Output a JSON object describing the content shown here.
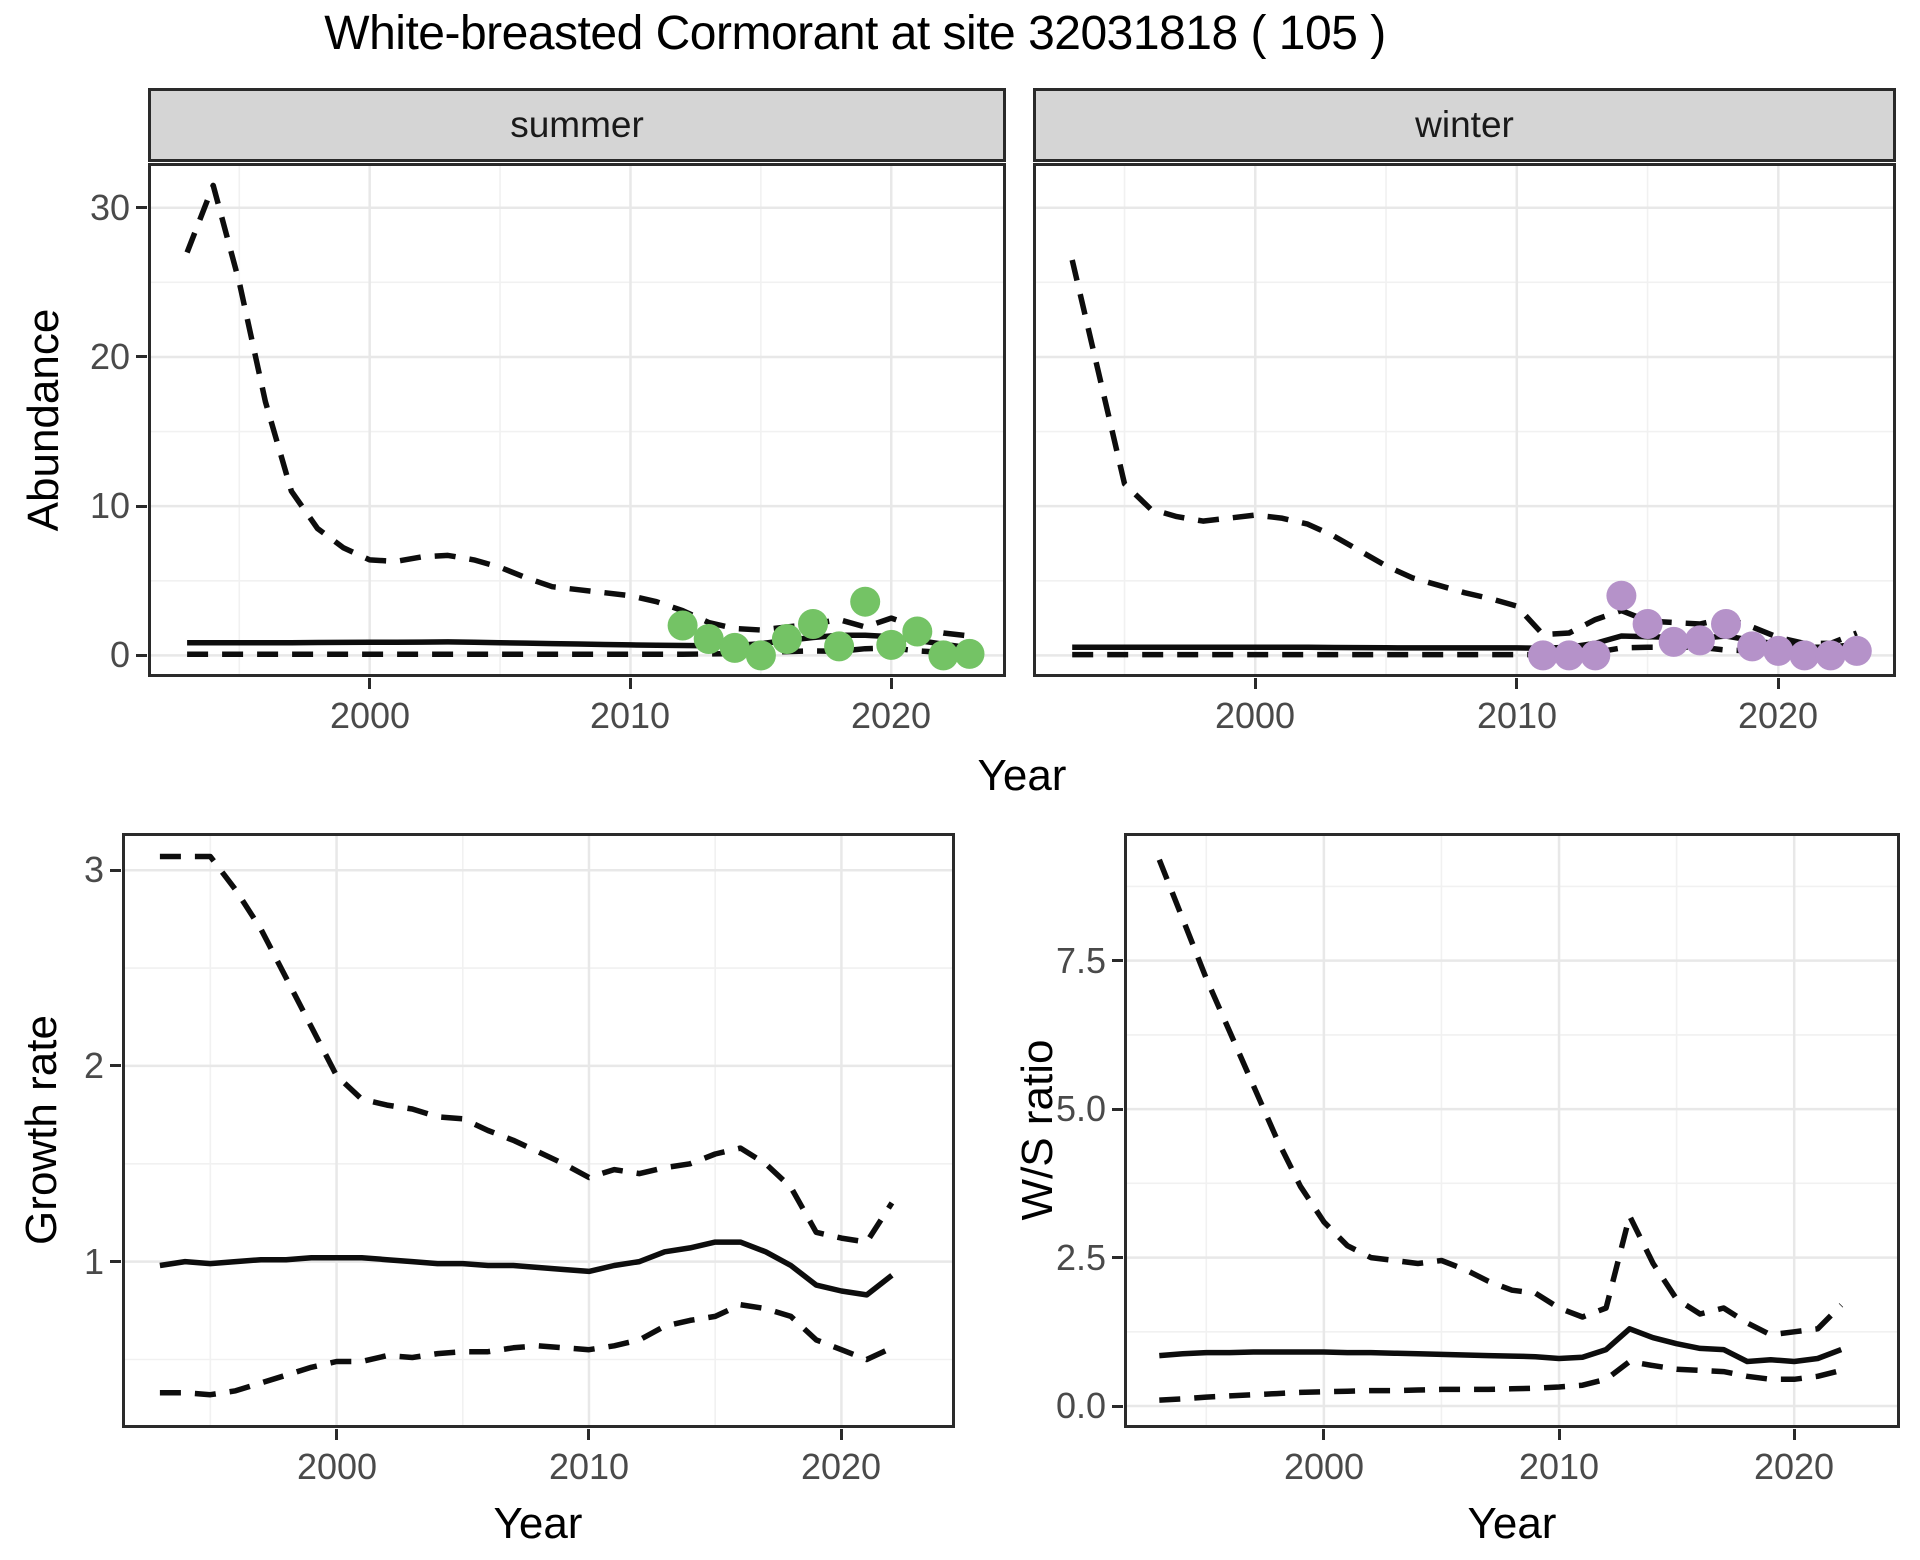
{
  "page_title": "White-breasted Cormorant at site 32031818 ( 105 )",
  "top_row": {
    "xlabel": "Year",
    "facets": [
      "summer",
      "winter"
    ]
  },
  "colors": {
    "summer_points": "#74c365",
    "winter_points": "#b592c9",
    "line": "#0d0d0d",
    "strip_fill": "#d5d5d5",
    "panel_border": "#2a2a2a",
    "grid_major": "#e8e8e8",
    "grid_minor": "#f1f1f1",
    "tick_text": "#4a4a4a"
  },
  "chart_data": [
    {
      "id": "abundance-summer",
      "type": "line",
      "facet": "summer",
      "xlabel": "Year",
      "ylabel": "Abundance",
      "xlim": [
        1991.5,
        2024.4
      ],
      "ylim": [
        -1.45,
        33.0
      ],
      "xticks": [
        2000,
        2010,
        2020
      ],
      "yticks": [
        0,
        10,
        20,
        30
      ],
      "ytick_labels": [
        "0",
        "10",
        "20",
        "30"
      ],
      "x_minor": [
        1995,
        2005,
        2015
      ],
      "y_minor": [
        5,
        15,
        25
      ],
      "x": [
        1993,
        1994,
        1995,
        1996,
        1997,
        1998,
        1999,
        2000,
        2001,
        2002,
        2003,
        2004,
        2005,
        2006,
        2007,
        2008,
        2009,
        2010,
        2011,
        2012,
        2013,
        2014,
        2015,
        2016,
        2017,
        2018,
        2019,
        2020,
        2021,
        2022,
        2023
      ],
      "series": [
        {
          "name": "upper-95ci",
          "style": "dashed",
          "values": [
            27,
            31.5,
            25,
            17,
            11,
            8.5,
            7.2,
            6.4,
            6.3,
            6.6,
            6.7,
            6.4,
            5.9,
            5.2,
            4.6,
            4.4,
            4.2,
            4.0,
            3.6,
            3.0,
            2.2,
            1.8,
            1.7,
            1.9,
            2.1,
            2.4,
            1.9,
            2.5,
            1.9,
            1.5,
            1.3
          ]
        },
        {
          "name": "median",
          "style": "solid",
          "values": [
            0.85,
            0.85,
            0.85,
            0.85,
            0.85,
            0.86,
            0.87,
            0.88,
            0.88,
            0.89,
            0.9,
            0.88,
            0.85,
            0.82,
            0.79,
            0.76,
            0.73,
            0.7,
            0.68,
            0.66,
            0.64,
            0.66,
            0.78,
            1.0,
            1.2,
            1.35,
            1.35,
            1.25,
            1.0,
            0.75,
            0.5
          ]
        },
        {
          "name": "lower-95ci",
          "style": "dashed",
          "values": [
            0.07,
            0.07,
            0.07,
            0.07,
            0.07,
            0.07,
            0.07,
            0.07,
            0.07,
            0.07,
            0.07,
            0.07,
            0.07,
            0.07,
            0.07,
            0.07,
            0.07,
            0.07,
            0.07,
            0.07,
            0.1,
            0.12,
            0.18,
            0.25,
            0.3,
            0.28,
            0.45,
            0.5,
            0.3,
            0.2,
            0.15
          ]
        }
      ],
      "points": {
        "name": "observed-summer",
        "color": "#74c365",
        "x": [
          2012,
          2013,
          2014,
          2015,
          2016,
          2017,
          2018,
          2019,
          2020,
          2021,
          2022,
          2023
        ],
        "values": [
          2.0,
          1.1,
          0.5,
          0.0,
          1.1,
          2.1,
          0.6,
          3.6,
          0.7,
          1.6,
          0.0,
          0.1
        ]
      }
    },
    {
      "id": "abundance-winter",
      "type": "line",
      "facet": "winter",
      "xlabel": "Year",
      "ylabel": "Abundance",
      "xlim": [
        1991.5,
        2024.5
      ],
      "ylim": [
        -1.45,
        33.0
      ],
      "xticks": [
        2000,
        2010,
        2020
      ],
      "yticks": [
        0,
        10,
        20,
        30
      ],
      "ytick_labels": [
        "0",
        "10",
        "20",
        "30"
      ],
      "x_minor": [
        1995,
        2005,
        2015
      ],
      "y_minor": [
        5,
        15,
        25
      ],
      "x": [
        1993,
        1994,
        1995,
        1996,
        1997,
        1998,
        1999,
        2000,
        2001,
        2002,
        2003,
        2004,
        2005,
        2006,
        2007,
        2008,
        2009,
        2010,
        2011,
        2012,
        2013,
        2014,
        2015,
        2016,
        2017,
        2018,
        2019,
        2020,
        2021,
        2022,
        2023
      ],
      "series": [
        {
          "name": "upper-95ci",
          "style": "dashed",
          "values": [
            26.5,
            19,
            11.5,
            9.8,
            9.3,
            9.0,
            9.2,
            9.4,
            9.2,
            8.8,
            8.0,
            7.0,
            6.0,
            5.2,
            4.7,
            4.2,
            3.8,
            3.3,
            1.4,
            1.5,
            2.4,
            3.0,
            2.3,
            2.2,
            2.1,
            2.5,
            1.9,
            1.2,
            0.8,
            0.8,
            1.5
          ]
        },
        {
          "name": "median",
          "style": "solid",
          "values": [
            0.55,
            0.55,
            0.55,
            0.55,
            0.55,
            0.55,
            0.55,
            0.55,
            0.55,
            0.54,
            0.53,
            0.52,
            0.51,
            0.5,
            0.5,
            0.5,
            0.5,
            0.5,
            0.48,
            0.55,
            0.8,
            1.3,
            1.25,
            1.2,
            1.15,
            1.3,
            1.0,
            0.75,
            0.55,
            0.55,
            0.75
          ]
        },
        {
          "name": "lower-95ci",
          "style": "dashed",
          "values": [
            0.05,
            0.05,
            0.05,
            0.05,
            0.05,
            0.05,
            0.05,
            0.05,
            0.05,
            0.05,
            0.05,
            0.05,
            0.05,
            0.05,
            0.05,
            0.05,
            0.05,
            0.05,
            0.05,
            0.05,
            0.2,
            0.5,
            0.55,
            0.55,
            0.55,
            0.35,
            0.3,
            0.1,
            0.08,
            0.1,
            0.4
          ]
        }
      ],
      "points": {
        "name": "observed-winter",
        "color": "#b592c9",
        "x": [
          2011,
          2012,
          2013,
          2014,
          2015,
          2016,
          2017,
          2018,
          2019,
          2020,
          2021,
          2022,
          2023
        ],
        "values": [
          0.0,
          0.0,
          0.0,
          4.0,
          2.1,
          0.9,
          1.0,
          2.1,
          0.6,
          0.3,
          0.0,
          0.0,
          0.3
        ]
      }
    },
    {
      "id": "growth-rate",
      "type": "line",
      "facet": null,
      "xlabel": "Year",
      "ylabel": "Growth rate",
      "xlim": [
        1991.5,
        2024.5
      ],
      "ylim": [
        0.15,
        3.19
      ],
      "xticks": [
        2000,
        2010,
        2020
      ],
      "yticks": [
        1,
        2,
        3
      ],
      "ytick_labels": [
        "1",
        "2",
        "3"
      ],
      "x_minor": [
        1995,
        2005,
        2015
      ],
      "y_minor": [
        0.5,
        1.5,
        2.5
      ],
      "x": [
        1993,
        1994,
        1995,
        1996,
        1997,
        1998,
        1999,
        2000,
        2001,
        2002,
        2003,
        2004,
        2005,
        2006,
        2007,
        2008,
        2009,
        2010,
        2011,
        2012,
        2013,
        2014,
        2015,
        2016,
        2017,
        2018,
        2019,
        2020,
        2021,
        2022
      ],
      "series": [
        {
          "name": "upper-95ci",
          "style": "dashed",
          "values": [
            3.07,
            3.07,
            3.07,
            2.9,
            2.7,
            2.45,
            2.2,
            1.95,
            1.83,
            1.8,
            1.78,
            1.74,
            1.73,
            1.67,
            1.62,
            1.56,
            1.5,
            1.43,
            1.47,
            1.45,
            1.48,
            1.5,
            1.55,
            1.58,
            1.5,
            1.38,
            1.15,
            1.12,
            1.1,
            1.3
          ]
        },
        {
          "name": "median",
          "style": "solid",
          "values": [
            0.98,
            1.0,
            0.99,
            1.0,
            1.01,
            1.01,
            1.02,
            1.02,
            1.02,
            1.01,
            1.0,
            0.99,
            0.99,
            0.98,
            0.98,
            0.97,
            0.96,
            0.95,
            0.98,
            1.0,
            1.05,
            1.07,
            1.1,
            1.1,
            1.05,
            0.98,
            0.88,
            0.85,
            0.83,
            0.93
          ]
        },
        {
          "name": "lower-95ci",
          "style": "dashed",
          "values": [
            0.33,
            0.33,
            0.32,
            0.34,
            0.38,
            0.42,
            0.46,
            0.49,
            0.49,
            0.52,
            0.51,
            0.53,
            0.54,
            0.54,
            0.56,
            0.57,
            0.56,
            0.55,
            0.57,
            0.6,
            0.67,
            0.7,
            0.72,
            0.78,
            0.76,
            0.72,
            0.6,
            0.55,
            0.5,
            0.56
          ]
        }
      ],
      "points": null
    },
    {
      "id": "ws-ratio",
      "type": "line",
      "facet": null,
      "xlabel": "Year",
      "ylabel": "W/S ratio",
      "xlim": [
        1991.5,
        2024.5
      ],
      "ylim": [
        -0.37,
        9.65
      ],
      "xticks": [
        2000,
        2010,
        2020
      ],
      "yticks": [
        0,
        2.5,
        5,
        7.5
      ],
      "ytick_labels": [
        "0.0",
        "2.5",
        "5.0",
        "7.5"
      ],
      "x_minor": [
        1995,
        2005,
        2015
      ],
      "y_minor": [
        1.25,
        3.75,
        6.25,
        8.75
      ],
      "x": [
        1993,
        1994,
        1995,
        1996,
        1997,
        1998,
        1999,
        2000,
        2001,
        2002,
        2003,
        2004,
        2005,
        2006,
        2007,
        2008,
        2009,
        2010,
        2011,
        2012,
        2013,
        2014,
        2015,
        2016,
        2017,
        2018,
        2019,
        2020,
        2021,
        2022
      ],
      "series": [
        {
          "name": "upper-95ci",
          "style": "dashed",
          "values": [
            9.2,
            8.2,
            7.2,
            6.3,
            5.4,
            4.5,
            3.7,
            3.1,
            2.7,
            2.5,
            2.45,
            2.4,
            2.45,
            2.3,
            2.1,
            1.95,
            1.9,
            1.65,
            1.5,
            1.65,
            3.2,
            2.4,
            1.8,
            1.55,
            1.65,
            1.4,
            1.2,
            1.25,
            1.3,
            1.7
          ]
        },
        {
          "name": "median",
          "style": "solid",
          "values": [
            0.85,
            0.88,
            0.9,
            0.9,
            0.91,
            0.91,
            0.91,
            0.91,
            0.9,
            0.9,
            0.89,
            0.88,
            0.87,
            0.86,
            0.85,
            0.84,
            0.83,
            0.8,
            0.82,
            0.95,
            1.3,
            1.15,
            1.05,
            0.97,
            0.95,
            0.75,
            0.78,
            0.75,
            0.8,
            0.95
          ]
        },
        {
          "name": "lower-95ci",
          "style": "dashed",
          "values": [
            0.1,
            0.12,
            0.15,
            0.17,
            0.19,
            0.21,
            0.23,
            0.24,
            0.25,
            0.26,
            0.26,
            0.27,
            0.28,
            0.28,
            0.28,
            0.29,
            0.3,
            0.32,
            0.35,
            0.45,
            0.75,
            0.68,
            0.62,
            0.6,
            0.58,
            0.5,
            0.45,
            0.45,
            0.5,
            0.6
          ]
        }
      ],
      "points": null
    }
  ]
}
